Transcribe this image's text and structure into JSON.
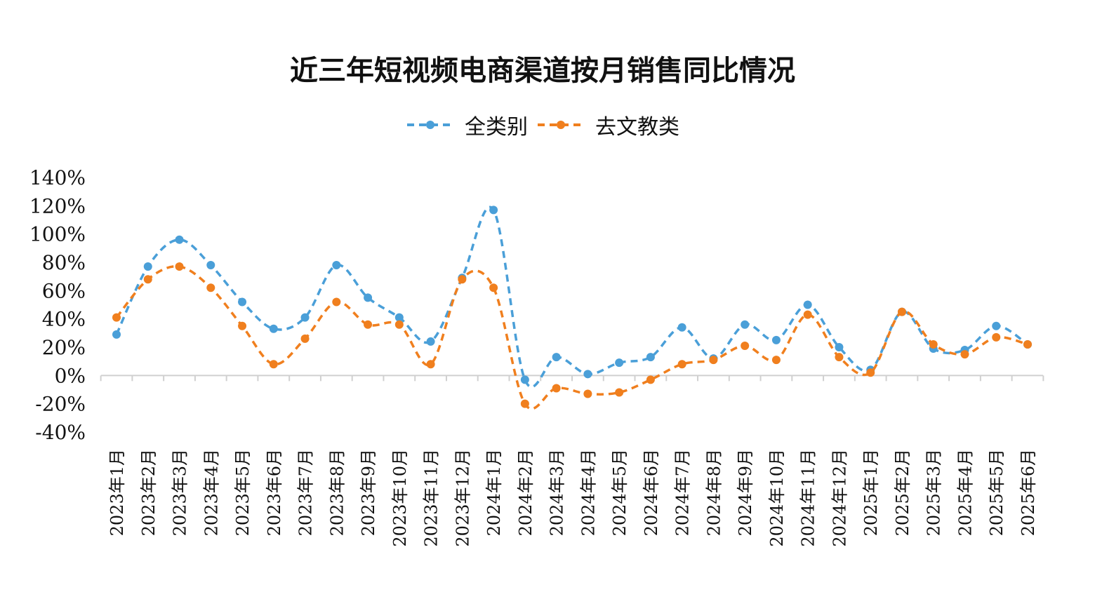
{
  "chart_data": {
    "type": "line",
    "title": "近三年短视频电商渠道按月销售同比情况",
    "legend_position": "top",
    "grid": false,
    "ylim": [
      -40,
      140
    ],
    "yticks": [
      "140%",
      "120%",
      "100%",
      "80%",
      "60%",
      "40%",
      "20%",
      "0%",
      "-20%",
      "-40%"
    ],
    "ytick_values": [
      140,
      120,
      100,
      80,
      60,
      40,
      20,
      0,
      -20,
      -40
    ],
    "categories": [
      "2023年1月",
      "2023年2月",
      "2023年3月",
      "2023年4月",
      "2023年5月",
      "2023年6月",
      "2023年7月",
      "2023年8月",
      "2023年9月",
      "2023年10月",
      "2023年11月",
      "2023年12月",
      "2024年1月",
      "2024年2月",
      "2024年3月",
      "2024年4月",
      "2024年5月",
      "2024年6月",
      "2024年7月",
      "2024年8月",
      "2024年9月",
      "2024年10月",
      "2024年11月",
      "2024年12月",
      "2025年1月",
      "2025年2月",
      "2025年3月",
      "2025年4月",
      "2025年5月",
      "2025年6月"
    ],
    "series": [
      {
        "name": "全类别",
        "color": "#4a9fd8",
        "values": [
          29,
          77,
          96,
          78,
          52,
          33,
          41,
          78,
          55,
          41,
          24,
          69,
          117,
          -3,
          13,
          1,
          9,
          13,
          34,
          12,
          36,
          25,
          50,
          20,
          4,
          45,
          19,
          18,
          35,
          22
        ]
      },
      {
        "name": "去文教类",
        "color": "#f07f1e",
        "values": [
          41,
          68,
          77,
          62,
          35,
          8,
          26,
          52,
          36,
          36,
          8,
          68,
          62,
          -20,
          -9,
          -13,
          -12,
          -3,
          8,
          11,
          21,
          11,
          43,
          13,
          2,
          45,
          22,
          15,
          27,
          22
        ]
      }
    ]
  }
}
